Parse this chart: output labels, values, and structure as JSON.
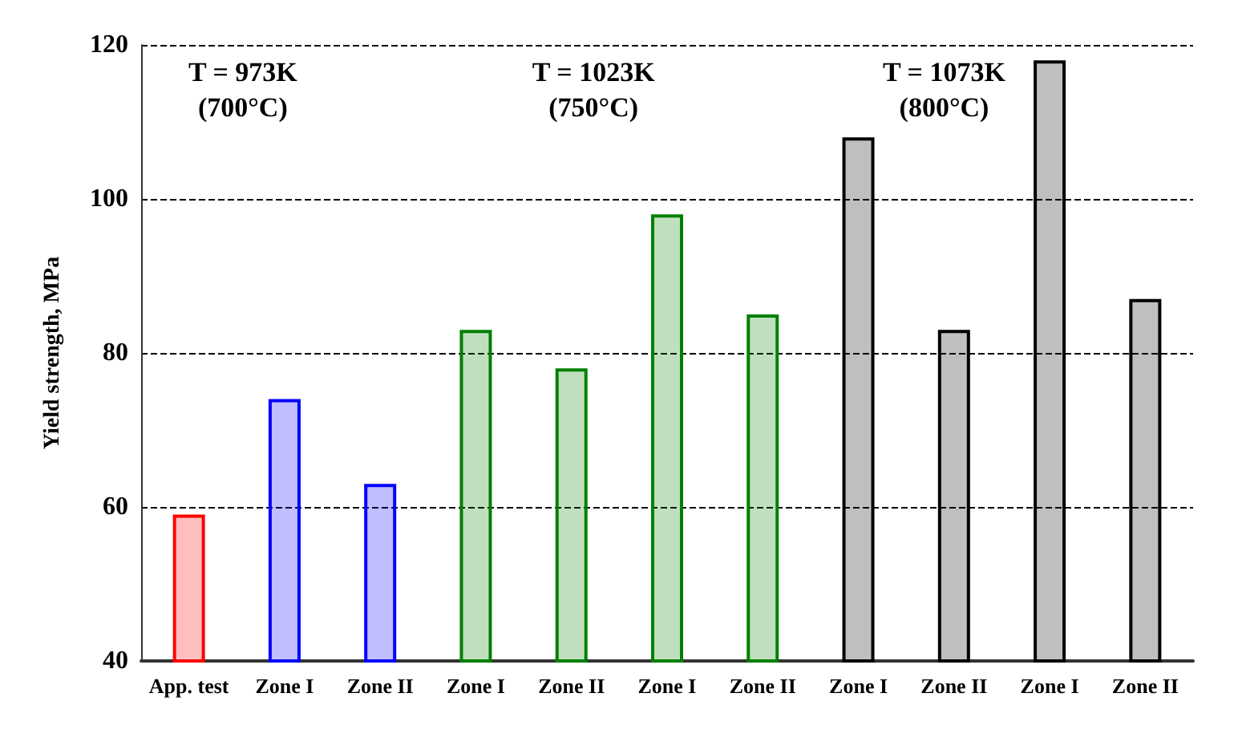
{
  "chart_data": {
    "type": "bar",
    "ylabel": "Yield strength, MPa",
    "categories": [
      "App. test",
      "Zone I",
      "Zone II",
      "Zone I",
      "Zone II",
      "Zone I",
      "Zone II",
      "Zone I",
      "Zone II",
      "Zone I",
      "Zone II"
    ],
    "values": [
      59,
      74,
      63,
      83,
      78,
      98,
      85,
      108,
      83,
      118,
      87
    ],
    "colors": [
      "#ff0000",
      "#0000ff",
      "#0000ff",
      "#008000",
      "#008000",
      "#008000",
      "#008000",
      "#000000",
      "#000000",
      "#000000",
      "#000000"
    ],
    "ylim": [
      40,
      120
    ],
    "yticks": [
      40,
      60,
      80,
      100,
      120
    ],
    "grid": "y",
    "annotations": [
      "T = 973K\n(700°C)",
      "T = 1023K\n(750°C)",
      "T = 1073K\n(800°C)"
    ]
  }
}
